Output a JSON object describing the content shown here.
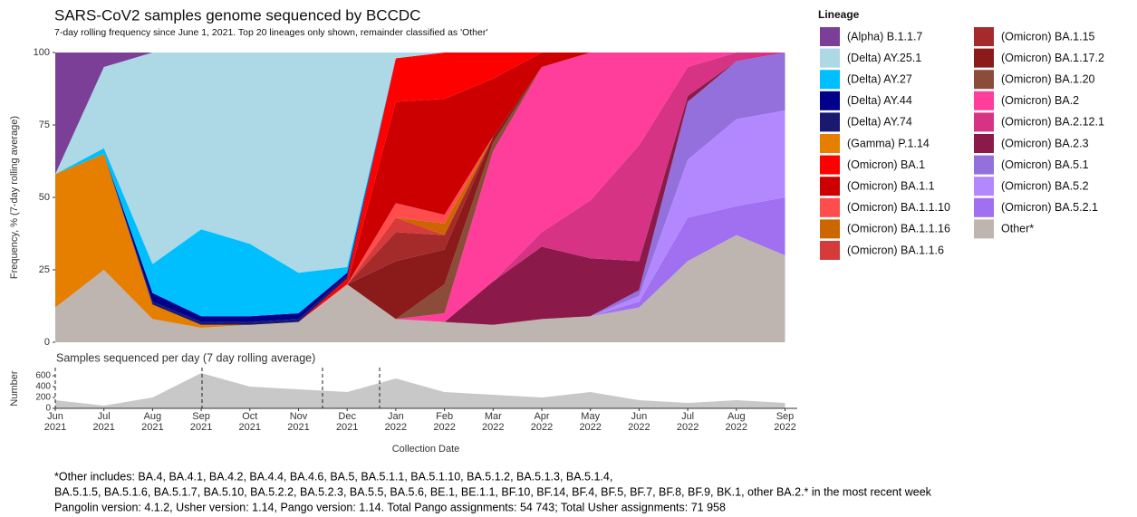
{
  "title": "SARS-CoV2 samples genome sequenced by BCCDC",
  "subtitle": "7-day rolling frequency since June 1, 2021.  Top 20 lineages only shown, remainder classified as 'Other'",
  "chart_data": [
    {
      "type": "stacked-area",
      "ylabel": "Frequency, % (7-day rolling average)",
      "legend_title": "Lineage",
      "categories": [
        "Jun 2021",
        "Jul 2021",
        "Aug 2021",
        "Sep 2021",
        "Oct 2021",
        "Nov 2021",
        "Dec 2021",
        "Jan 2022",
        "Feb 2022",
        "Mar 2022",
        "Apr 2022",
        "May 2022",
        "Jun 2022",
        "Jul 2022",
        "Aug 2022",
        "Sep 2022"
      ],
      "ylim": [
        0,
        100
      ],
      "yticks": [
        0,
        25,
        50,
        75,
        100
      ],
      "series": [
        {
          "name": "(Alpha) B.1.1.7",
          "color": "#7b3f98",
          "values": [
            42,
            5,
            0,
            0,
            0,
            0,
            0,
            0,
            0,
            0,
            0,
            0,
            0,
            0,
            0,
            0
          ]
        },
        {
          "name": "(Delta) AY.25.1",
          "color": "#add8e6",
          "values": [
            0,
            28,
            73,
            61,
            66,
            76,
            74,
            2,
            0,
            0,
            0,
            0,
            0,
            0,
            0,
            0
          ]
        },
        {
          "name": "(Delta) AY.27",
          "color": "#00bfff",
          "values": [
            0,
            2,
            10,
            30,
            25,
            14,
            2,
            0,
            0,
            0,
            0,
            0,
            0,
            0,
            0,
            0
          ]
        },
        {
          "name": "(Delta) AY.44",
          "color": "#00008b",
          "values": [
            0,
            0,
            3,
            2,
            2,
            2,
            1,
            0,
            0,
            0,
            0,
            0,
            0,
            0,
            0,
            0
          ]
        },
        {
          "name": "(Delta) AY.74",
          "color": "#191970",
          "values": [
            0,
            0,
            1,
            1,
            1,
            1,
            1,
            0,
            0,
            0,
            0,
            0,
            0,
            0,
            0,
            0
          ]
        },
        {
          "name": "(Gamma) P.1.14",
          "color": "#e67e00",
          "values": [
            46,
            40,
            5,
            1,
            0,
            0,
            0,
            0,
            0,
            0,
            0,
            0,
            0,
            0,
            0,
            0
          ]
        },
        {
          "name": "(Omicron) BA.1",
          "color": "#ff0000",
          "values": [
            0,
            0,
            0,
            0,
            0,
            0,
            2,
            15,
            16,
            9,
            0,
            0,
            0,
            0,
            0,
            0
          ]
        },
        {
          "name": "(Omicron) BA.1.1",
          "color": "#cc0000",
          "values": [
            0,
            0,
            0,
            0,
            0,
            0,
            0,
            35,
            40,
            20,
            5,
            0,
            0,
            0,
            0,
            0
          ]
        },
        {
          "name": "(Omicron) BA.1.1.10",
          "color": "#ff4d4d",
          "values": [
            0,
            0,
            0,
            0,
            0,
            0,
            0,
            5,
            3,
            0,
            0,
            0,
            0,
            0,
            0,
            0
          ]
        },
        {
          "name": "(Omicron) BA.1.1.16",
          "color": "#cc6600",
          "values": [
            0,
            0,
            0,
            0,
            0,
            0,
            0,
            0,
            4,
            0,
            0,
            0,
            0,
            0,
            0,
            0
          ]
        },
        {
          "name": "(Omicron) BA.1.1.6",
          "color": "#d63a3a",
          "values": [
            0,
            0,
            0,
            0,
            0,
            0,
            0,
            5,
            0,
            0,
            0,
            0,
            0,
            0,
            0,
            0
          ]
        },
        {
          "name": "(Omicron) BA.1.15",
          "color": "#a52a2a",
          "values": [
            0,
            0,
            0,
            0,
            0,
            0,
            0,
            10,
            5,
            0,
            0,
            0,
            0,
            0,
            0,
            0
          ]
        },
        {
          "name": "(Omicron) BA.1.17.2",
          "color": "#8b1a1a",
          "values": [
            0,
            0,
            0,
            0,
            0,
            0,
            0,
            20,
            12,
            2,
            0,
            0,
            0,
            0,
            0,
            0
          ]
        },
        {
          "name": "(Omicron) BA.1.20",
          "color": "#8b4c39",
          "values": [
            0,
            0,
            0,
            0,
            0,
            0,
            0,
            0,
            10,
            3,
            0,
            0,
            0,
            0,
            0,
            0
          ]
        },
        {
          "name": "(Omicron) BA.2",
          "color": "#ff3d9a",
          "values": [
            0,
            0,
            0,
            0,
            0,
            0,
            0,
            0,
            3,
            45,
            57,
            51,
            32,
            5,
            0,
            0
          ]
        },
        {
          "name": "(Omicron) BA.2.12.1",
          "color": "#d63384",
          "values": [
            0,
            0,
            0,
            0,
            0,
            0,
            0,
            0,
            0,
            0,
            5,
            20,
            40,
            10,
            3,
            0
          ]
        },
        {
          "name": "(Omicron) BA.2.3",
          "color": "#8b1a4a",
          "values": [
            0,
            0,
            0,
            0,
            0,
            0,
            0,
            0,
            0,
            15,
            25,
            20,
            10,
            2,
            0,
            0
          ]
        },
        {
          "name": "(Omicron) BA.5.1",
          "color": "#9370db",
          "values": [
            0,
            0,
            0,
            0,
            0,
            0,
            0,
            0,
            0,
            0,
            0,
            0,
            2,
            20,
            20,
            20
          ]
        },
        {
          "name": "(Omicron) BA.5.2",
          "color": "#b388ff",
          "values": [
            0,
            0,
            0,
            0,
            0,
            0,
            0,
            0,
            0,
            0,
            0,
            0,
            2,
            20,
            30,
            30
          ]
        },
        {
          "name": "(Omicron) BA.5.2.1",
          "color": "#a070f0",
          "values": [
            0,
            0,
            0,
            0,
            0,
            0,
            0,
            0,
            0,
            0,
            0,
            0,
            2,
            15,
            10,
            20
          ]
        },
        {
          "name": "Other*",
          "color": "#bfb5b0",
          "values": [
            12,
            25,
            8,
            5,
            6,
            7,
            20,
            8,
            7,
            6,
            8,
            9,
            12,
            28,
            37,
            30
          ]
        }
      ]
    },
    {
      "type": "area",
      "title": "Samples sequenced per day (7 day rolling average)",
      "ylabel": "Number",
      "xlabel": "Collection Date",
      "categories": [
        "Jun 2021",
        "Jul 2021",
        "Aug 2021",
        "Sep 2021",
        "Oct 2021",
        "Nov 2021",
        "Dec 2021",
        "Jan 2022",
        "Feb 2022",
        "Mar 2022",
        "Apr 2022",
        "May 2022",
        "Jun 2022",
        "Jul 2022",
        "Aug 2022",
        "Sep 2022"
      ],
      "values": [
        150,
        50,
        200,
        650,
        400,
        350,
        300,
        550,
        300,
        250,
        200,
        300,
        150,
        100,
        150,
        100
      ],
      "color": "#c8c8c8",
      "ylim": [
        0,
        750
      ],
      "yticks": [
        0,
        200,
        400,
        600
      ]
    }
  ],
  "notes": [
    "*Other includes: BA.4, BA.4.1, BA.4.2, BA.4.4, BA.4.6, BA.5, BA.5.1.1, BA.5.1.10, BA.5.1.2, BA.5.1.3, BA.5.1.4,",
    "BA.5.1.5, BA.5.1.6, BA.5.1.7, BA.5.10, BA.5.2.2, BA.5.2.3, BA.5.5, BA.5.6, BE.1, BE.1.1, BF.10, BF.14, BF.4, BF.5, BF.7, BF.8, BF.9, BK.1, other BA.2.* in the most recent week",
    "Pangolin version: 4.1.2, Usher version: 1.14, Pango version: 1.14. Total Pango assignments: 54 743; Total Usher assignments: 71 958"
  ]
}
